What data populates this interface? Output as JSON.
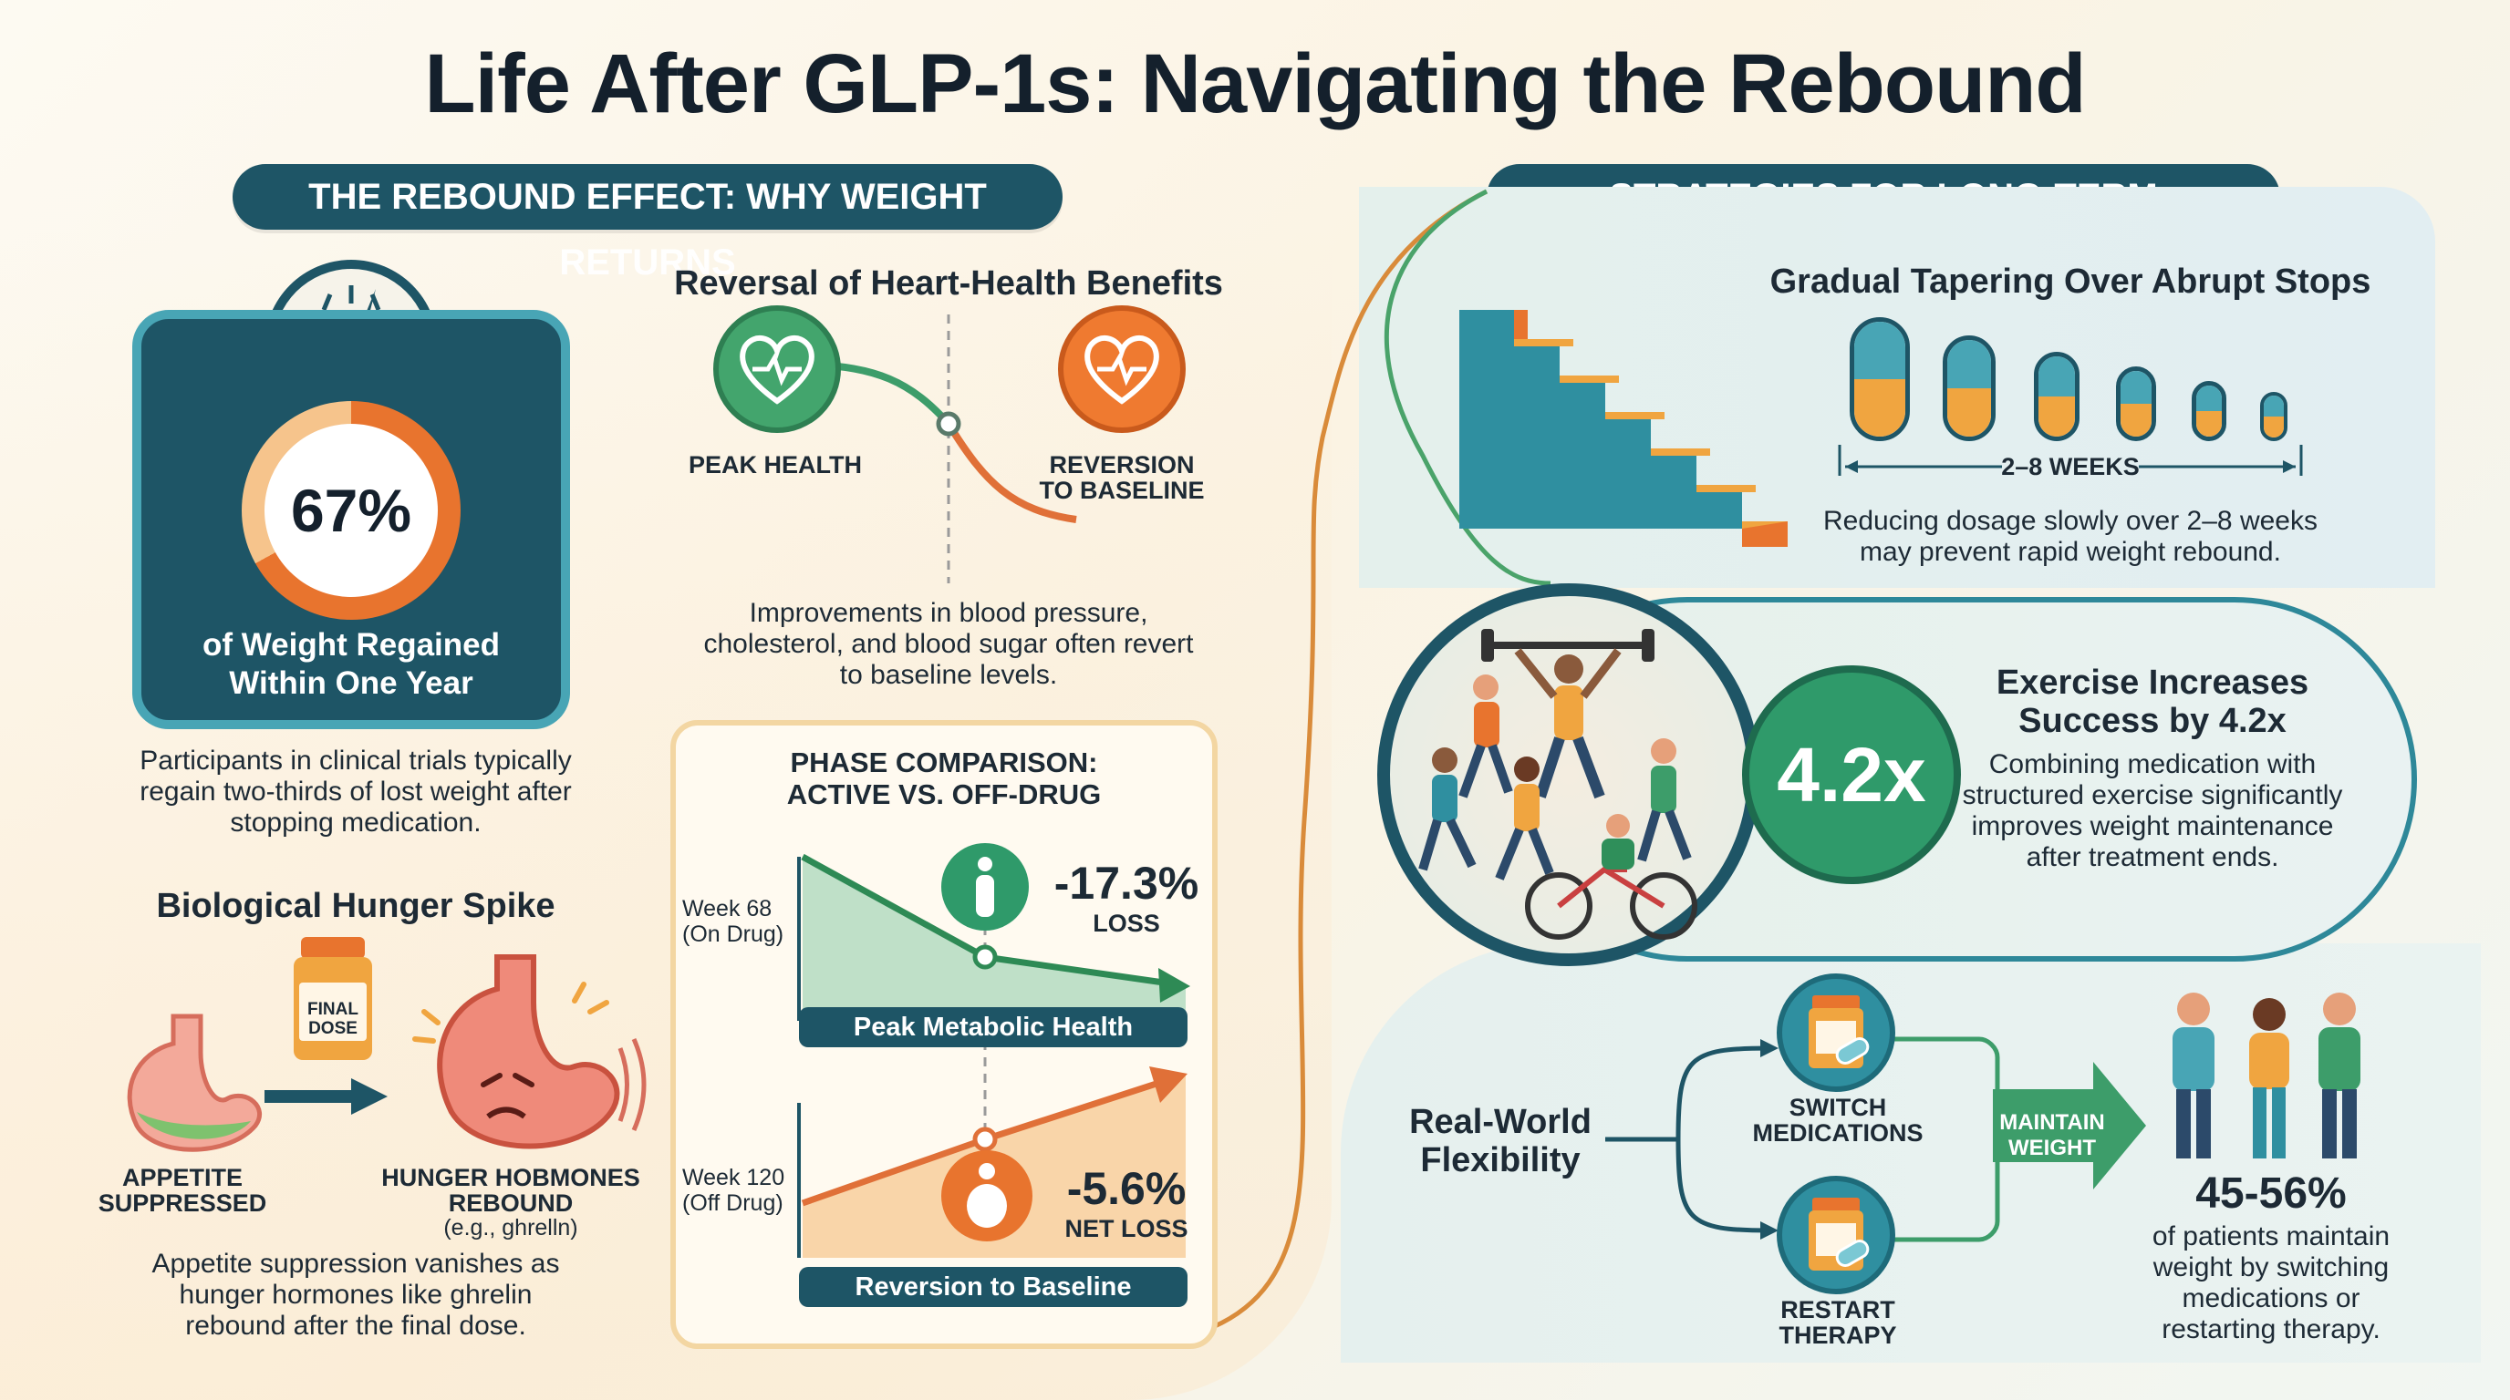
{
  "title": "Life After GLP-1s: Navigating the Rebound",
  "left_section": {
    "header": "THE REBOUND EFFECT: WHY WEIGHT RETURNS",
    "scale": {
      "percent": "67%",
      "percent_value": 67,
      "label_line1": "of Weight Regained",
      "label_line2": "Within One Year",
      "caption_line1": "Participants in clinical trials typically",
      "caption_line2": "regain two-thirds of lost weight after",
      "caption_line3": "stopping medication."
    },
    "hunger": {
      "title": "Biological Hunger Spike",
      "bottle_line1": "FINAL",
      "bottle_line2": "DOSE",
      "left_label_line1": "APPETITE",
      "left_label_line2": "SUPPRESSED",
      "right_label_line1": "HUNGER HOBMONES",
      "right_label_line2": "REBOUND",
      "right_sub": "(e.g., ghrelln)",
      "caption_line1": "Appetite suppression vanishes as",
      "caption_line2": "hunger hormones like ghrelin",
      "caption_line3": "rebound after the final dose."
    },
    "heart": {
      "title": "Reversal of Heart-Health Benefits",
      "peak_label": "PEAK HEALTH",
      "reversion_line1": "REVERSION",
      "reversion_line2": "TO BASELINE",
      "caption_line1": "Improvements in blood pressure,",
      "caption_line2": "cholesterol, and blood sugar often revert",
      "caption_line3": "to baseline levels."
    },
    "phase": {
      "title_line1": "PHASE COMPARISON:",
      "title_line2": "ACTIVE VS. OFF-DRUG",
      "week1_line1": "Week 68",
      "week1_line2": "(On Drug)",
      "stat1": "-17.3%",
      "stat1_label": "LOSS",
      "bar1": "Peak Metabolic Health",
      "week2_line1": "Week 120",
      "week2_line2": "(Off Drug)",
      "stat2": "-5.6%",
      "stat2_label": "NET LOSS",
      "bar2": "Reversion to Baseline"
    }
  },
  "right_section": {
    "header": "STRATEGIES FOR LONG-TERM MAINTENANCE",
    "taper": {
      "title": "Gradual Tapering Over Abrupt Stops",
      "weeks_label": "2–8 WEEKS",
      "caption_line1": "Reducing dosage slowly over 2–8 weeks",
      "caption_line2": "may prevent rapid weight rebound."
    },
    "exercise": {
      "stat": "4.2x",
      "title_line1": "Exercise Increases",
      "title_line2": "Success by 4.2x",
      "caption_line1": "Combining medication with",
      "caption_line2": "structured exercise significantly",
      "caption_line3": "improves weight maintenance",
      "caption_line4": "after treatment ends."
    },
    "flex": {
      "title_line1": "Real-World",
      "title_line2": "Flexibility",
      "switch_line1": "SWITCH",
      "switch_line2": "MEDICATIONS",
      "restart_line1": "RESTART",
      "restart_line2": "THERAPY",
      "arrow_line1": "MAINTAIN",
      "arrow_line2": "WEIGHT",
      "stat": "45-56%",
      "caption_line1": "of patients maintain",
      "caption_line2": "weight by switching",
      "caption_line3": "medications or",
      "caption_line4": "restarting therapy."
    }
  },
  "colors": {
    "navy": "#1e5566",
    "orange": "#e8742e",
    "green": "#2f9a6a",
    "teal": "#48a5b5"
  }
}
